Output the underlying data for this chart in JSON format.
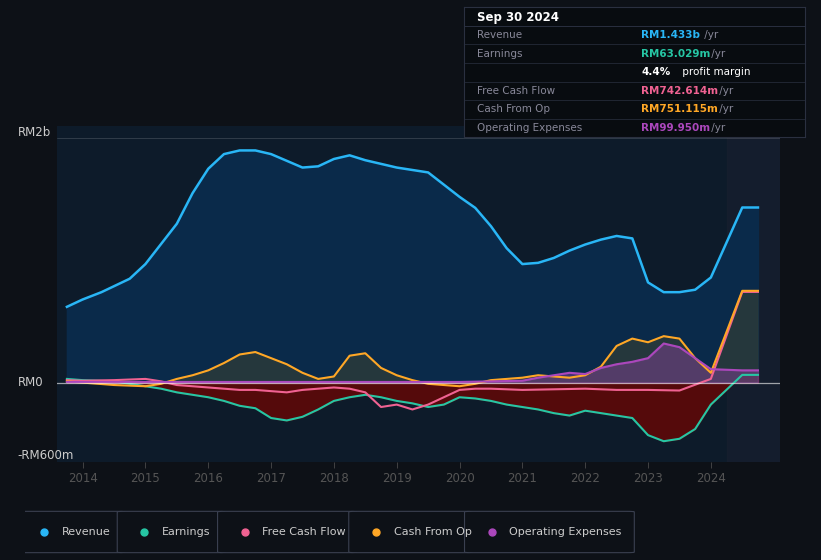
{
  "bg_color": "#0d1117",
  "plot_bg_color": "#0d1b2a",
  "ylabel_top": "RM2b",
  "ylabel_zero": "RM0",
  "ylabel_bottom": "-RM600m",
  "xmin": 2013.6,
  "xmax": 2025.1,
  "ymin": -650,
  "ymax": 2100,
  "colors": {
    "revenue": "#29b6f6",
    "earnings": "#26c6a4",
    "free_cash_flow": "#f06292",
    "cash_from_op": "#ffa726",
    "operating_expenses": "#ab47bc",
    "earnings_fill": "#5a0a0a",
    "revenue_fill": "#0a2a4a"
  },
  "revenue": {
    "x": [
      2013.75,
      2014.0,
      2014.3,
      2014.75,
      2015.0,
      2015.5,
      2015.75,
      2016.0,
      2016.25,
      2016.5,
      2016.75,
      2017.0,
      2017.5,
      2017.75,
      2018.0,
      2018.25,
      2018.5,
      2019.0,
      2019.5,
      2020.0,
      2020.25,
      2020.5,
      2020.75,
      2021.0,
      2021.25,
      2021.5,
      2021.75,
      2022.0,
      2022.25,
      2022.5,
      2022.75,
      2023.0,
      2023.25,
      2023.5,
      2023.75,
      2024.0,
      2024.5,
      2024.75
    ],
    "y": [
      620,
      680,
      740,
      850,
      970,
      1300,
      1550,
      1750,
      1870,
      1900,
      1900,
      1870,
      1760,
      1770,
      1830,
      1860,
      1820,
      1760,
      1720,
      1520,
      1430,
      1280,
      1100,
      970,
      980,
      1020,
      1080,
      1130,
      1170,
      1200,
      1180,
      820,
      740,
      740,
      760,
      860,
      1433,
      1433
    ]
  },
  "earnings": {
    "x": [
      2013.75,
      2014.0,
      2014.5,
      2014.75,
      2015.0,
      2015.25,
      2015.5,
      2015.75,
      2016.0,
      2016.25,
      2016.5,
      2016.75,
      2017.0,
      2017.25,
      2017.5,
      2017.75,
      2018.0,
      2018.25,
      2018.5,
      2018.75,
      2019.0,
      2019.25,
      2019.5,
      2019.75,
      2020.0,
      2020.25,
      2020.5,
      2020.75,
      2021.0,
      2021.25,
      2021.5,
      2021.75,
      2022.0,
      2022.25,
      2022.5,
      2022.75,
      2023.0,
      2023.25,
      2023.5,
      2023.75,
      2024.0,
      2024.5,
      2024.75
    ],
    "y": [
      30,
      20,
      10,
      -10,
      -30,
      -50,
      -80,
      -100,
      -120,
      -150,
      -190,
      -210,
      -290,
      -310,
      -280,
      -220,
      -150,
      -120,
      -100,
      -120,
      -150,
      -170,
      -200,
      -180,
      -120,
      -130,
      -150,
      -180,
      -200,
      -220,
      -250,
      -270,
      -230,
      -250,
      -270,
      -290,
      -430,
      -480,
      -460,
      -380,
      -180,
      63,
      63
    ]
  },
  "free_cash_flow": {
    "x": [
      2013.75,
      2014.0,
      2014.5,
      2015.0,
      2015.25,
      2015.5,
      2015.75,
      2016.0,
      2016.25,
      2016.5,
      2016.75,
      2017.0,
      2017.25,
      2017.5,
      2018.0,
      2018.25,
      2018.5,
      2018.75,
      2019.0,
      2019.25,
      2019.5,
      2019.75,
      2020.0,
      2020.25,
      2020.5,
      2021.0,
      2021.5,
      2022.0,
      2022.5,
      2023.0,
      2023.5,
      2024.0,
      2024.5,
      2024.75
    ],
    "y": [
      20,
      15,
      20,
      30,
      10,
      -20,
      -30,
      -40,
      -50,
      -60,
      -60,
      -70,
      -80,
      -60,
      -40,
      -50,
      -80,
      -200,
      -180,
      -220,
      -180,
      -120,
      -60,
      -50,
      -50,
      -60,
      -55,
      -50,
      -60,
      -60,
      -65,
      30,
      742,
      742
    ]
  },
  "cash_from_op": {
    "x": [
      2013.75,
      2014.0,
      2014.5,
      2015.0,
      2015.25,
      2015.5,
      2015.75,
      2016.0,
      2016.25,
      2016.5,
      2016.75,
      2017.0,
      2017.25,
      2017.5,
      2017.75,
      2018.0,
      2018.25,
      2018.5,
      2018.75,
      2019.0,
      2019.25,
      2019.5,
      2019.75,
      2020.0,
      2020.25,
      2020.5,
      2020.75,
      2021.0,
      2021.25,
      2021.5,
      2021.75,
      2022.0,
      2022.25,
      2022.5,
      2022.75,
      2023.0,
      2023.25,
      2023.5,
      2023.75,
      2024.0,
      2024.5,
      2024.75
    ],
    "y": [
      10,
      0,
      -20,
      -30,
      -10,
      30,
      60,
      100,
      160,
      230,
      250,
      200,
      150,
      80,
      30,
      50,
      220,
      240,
      120,
      60,
      20,
      -10,
      -20,
      -30,
      -10,
      20,
      30,
      40,
      60,
      50,
      40,
      60,
      130,
      300,
      360,
      330,
      380,
      360,
      200,
      80,
      751,
      751
    ]
  },
  "operating_expenses": {
    "x": [
      2013.75,
      2014.0,
      2014.5,
      2015.0,
      2015.5,
      2016.0,
      2016.5,
      2017.0,
      2017.5,
      2018.0,
      2018.5,
      2019.0,
      2019.5,
      2020.0,
      2020.5,
      2021.0,
      2021.25,
      2021.5,
      2021.75,
      2022.0,
      2022.25,
      2022.5,
      2022.75,
      2023.0,
      2023.25,
      2023.5,
      2023.75,
      2024.0,
      2024.5,
      2024.75
    ],
    "y": [
      5,
      5,
      5,
      5,
      5,
      5,
      5,
      5,
      5,
      5,
      5,
      5,
      5,
      5,
      10,
      15,
      40,
      60,
      80,
      70,
      120,
      150,
      170,
      200,
      320,
      290,
      200,
      110,
      100,
      100
    ]
  },
  "info_box": {
    "title": "Sep 30 2024",
    "rows": [
      {
        "label": "Revenue",
        "value": "RM1.433b",
        "color": "#29b6f6"
      },
      {
        "label": "Earnings",
        "value": "RM63.029m",
        "color": "#26c6a4"
      },
      {
        "label": "",
        "value": "4.4% profit margin",
        "color": "#ffffff"
      },
      {
        "label": "Free Cash Flow",
        "value": "RM742.614m",
        "color": "#f06292"
      },
      {
        "label": "Cash From Op",
        "value": "RM751.115m",
        "color": "#ffa726"
      },
      {
        "label": "Operating Expenses",
        "value": "RM99.950m",
        "color": "#ab47bc"
      }
    ]
  },
  "legend": [
    {
      "label": "Revenue",
      "color": "#29b6f6"
    },
    {
      "label": "Earnings",
      "color": "#26c6a4"
    },
    {
      "label": "Free Cash Flow",
      "color": "#f06292"
    },
    {
      "label": "Cash From Op",
      "color": "#ffa726"
    },
    {
      "label": "Operating Expenses",
      "color": "#ab47bc"
    }
  ],
  "xticks": [
    2014,
    2015,
    2016,
    2017,
    2018,
    2019,
    2020,
    2021,
    2022,
    2023,
    2024
  ]
}
